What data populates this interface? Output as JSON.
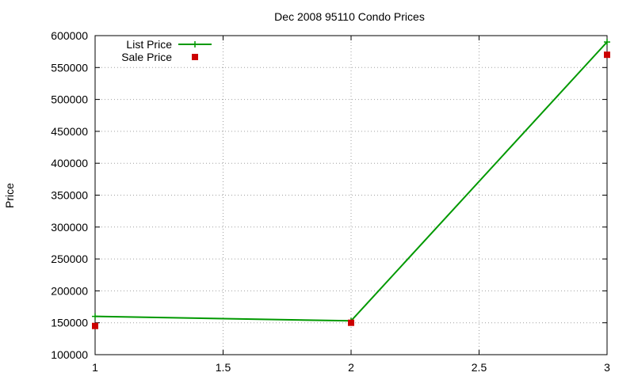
{
  "chart_data": {
    "type": "line",
    "title": "Dec 2008 95110 Condo Prices",
    "xlabel": "",
    "ylabel": "Price",
    "xlim": [
      1,
      3
    ],
    "ylim": [
      100000,
      600000
    ],
    "xticks": [
      1,
      1.5,
      2,
      2.5,
      3
    ],
    "xtick_labels": [
      "1",
      "1.5",
      "2",
      "2.5",
      "3"
    ],
    "yticks": [
      100000,
      150000,
      200000,
      250000,
      300000,
      350000,
      400000,
      450000,
      500000,
      550000,
      600000
    ],
    "ytick_labels": [
      "100000",
      "150000",
      "200000",
      "250000",
      "300000",
      "350000",
      "400000",
      "450000",
      "500000",
      "550000",
      "600000"
    ],
    "grid": true,
    "legend_position": "top-left",
    "series": [
      {
        "name": "List Price",
        "style": "linespoints",
        "marker": "plus",
        "color": "#009900",
        "x": [
          1,
          2,
          3
        ],
        "y": [
          160000,
          153000,
          590000
        ]
      },
      {
        "name": "Sale Price",
        "style": "points",
        "marker": "square",
        "color": "#cc0000",
        "x": [
          1,
          2,
          3
        ],
        "y": [
          145000,
          150000,
          570000
        ]
      }
    ]
  }
}
